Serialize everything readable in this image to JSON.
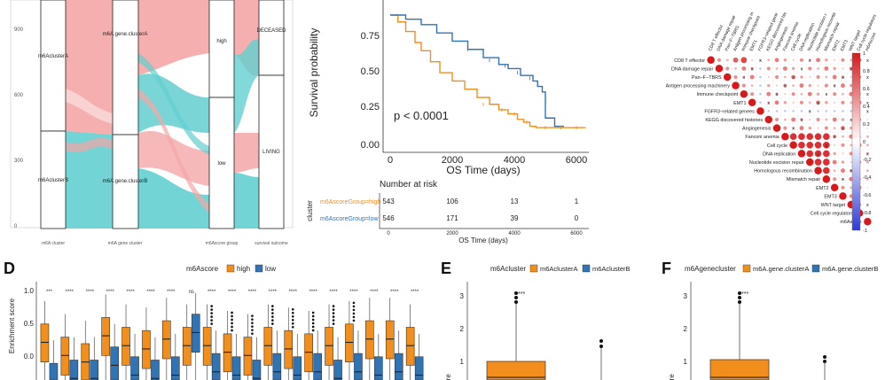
{
  "colors": {
    "high": "#f28e1c",
    "low": "#2f74b5",
    "clusterA": "#f28e1c",
    "clusterB": "#2f74b5",
    "sankey_pink": "#f4a6a6",
    "sankey_teal": "#63cfcf",
    "corr_pos": "#d7191c",
    "corr_neg": "#2c3bd6",
    "sig": "#444444"
  },
  "sankey": {
    "yticks": [
      "900",
      "600",
      "300",
      "0"
    ],
    "axes": [
      "m6A cluster",
      "m6A gene cluster",
      "m6Ascore group",
      "survival outcome"
    ],
    "nodes": [
      {
        "label": "m6AclusterA",
        "axis": 0
      },
      {
        "label": "m6AclusterB",
        "axis": 0
      },
      {
        "label": "m6A.gene.clusterA",
        "axis": 1
      },
      {
        "label": "m6A.gene.clusterB",
        "axis": 1
      },
      {
        "label": "high",
        "axis": 2
      },
      {
        "label": "low",
        "axis": 2
      },
      {
        "label": "DECEASED",
        "axis": 3
      },
      {
        "label": "LIVING",
        "axis": 3
      }
    ]
  },
  "km": {
    "ylabel": "Survival probability",
    "xlabel": "OS Time (days)",
    "yticks": [
      "0.75",
      "0.50",
      "0.25",
      "0.00"
    ],
    "xticks": [
      "0",
      "2000",
      "4000",
      "6000"
    ],
    "pvalue": "p < 0.0001",
    "risk_title": "Number at risk",
    "strata_label": "cluster",
    "strata": [
      {
        "name": "m6AscoreGroup=high",
        "counts": [
          "543",
          "106",
          "13",
          "1"
        ]
      },
      {
        "name": "m6AscoreGroup=low",
        "counts": [
          "546",
          "171",
          "39",
          "0"
        ]
      }
    ],
    "risk_xticks": [
      "0",
      "2000",
      "4000",
      "6000"
    ],
    "risk_xlabel": "OS Time (days)"
  },
  "corr": {
    "labels": [
      "CD8 T effector",
      "DNA damage repair",
      "Pan−F−TBRS",
      "Antigen processing machinery",
      "Immune checkpoint",
      "EMT1",
      "FGFR3−related genees",
      "KEGG discovered histones",
      "Angiogenesis",
      "Fanconi anemia",
      "Cell cycle",
      "DNA replication",
      "Nucleotide excision repair",
      "Homologous recombination",
      "Mismatch repair",
      "EMT2",
      "EMT3",
      "WNT target",
      "Cell cycle regulators",
      "m6Ascore"
    ],
    "col_labels": [
      "CD8 T effector",
      "DNA damage repair",
      "Pan−F−TBRS",
      "Antigen processing m",
      "Immune checkpoint",
      "EMT1",
      "FGFR3−related gene",
      "KEGG discovered his",
      "Angiogenesis",
      "Fanconi anemia",
      "Cell cycle",
      "DNA replication",
      "Nucleotide excision r",
      "Homologous recombi",
      "Mismatch repair",
      "EMT2",
      "EMT3",
      "WNT target",
      "Cell cycle regulators",
      "m6Ascore"
    ],
    "colorbar_ticks": [
      "1",
      "0.8",
      "0.6",
      "0.4",
      "0.2",
      "0",
      "-0.2",
      "-0.4",
      "-0.6",
      "-0.8",
      "-1"
    ],
    "x_mark": "x"
  },
  "panel_d": {
    "letter": "D",
    "legend_title": "m6Ascore",
    "legend_items": [
      "high",
      "low"
    ],
    "ylabel": "Enrichment score",
    "yticks": [
      "1.0",
      "0.5",
      "0.0"
    ],
    "significance": [
      "***",
      "****",
      "****",
      "****",
      "****",
      "****",
      "****",
      "ns",
      "****",
      "****",
      "****",
      "****",
      "****",
      "****",
      "****",
      "****",
      "****",
      "****",
      "****"
    ]
  },
  "panel_e": {
    "letter": "E",
    "legend_title": "m6Acluster",
    "legend_items": [
      "m6AclusterA",
      "m6AclusterB"
    ],
    "yticks": [
      "3",
      "2",
      "1"
    ],
    "ylabel": "ore",
    "significance": "***"
  },
  "panel_f": {
    "letter": "F",
    "legend_title": "m6Agenecluster",
    "legend_items": [
      "m6A.gene.clusterA",
      "m6A.gene.clusterB"
    ],
    "yticks": [
      "3",
      "2",
      "1"
    ],
    "ylabel": "ore",
    "significance": "***"
  }
}
